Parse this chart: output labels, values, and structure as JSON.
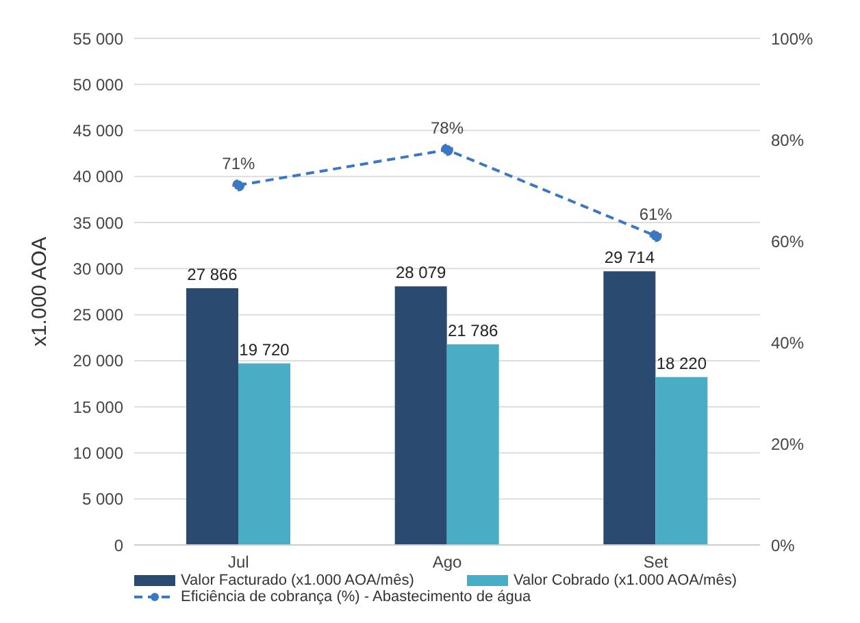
{
  "chart_data": {
    "type": "bar",
    "ylabel": "x1.000 AOA",
    "categories": [
      "Jul",
      "Ago",
      "Set"
    ],
    "series": [
      {
        "name": "Valor Facturado (x1.000 AOA/mês)",
        "color": "#2b4a6f",
        "values": [
          27866,
          28079,
          29714
        ],
        "value_labels": [
          "27 866",
          "28 079",
          "29 714"
        ]
      },
      {
        "name": "Valor Cobrado (x1.000 AOA/mês)",
        "color": "#4bacc6",
        "values": [
          19720,
          21786,
          18220
        ],
        "value_labels": [
          "19 720",
          "21 786",
          "18 220"
        ]
      },
      {
        "name": "Eficiência de cobrança (%) - Abastecimento de água",
        "type": "line",
        "axis": "y2",
        "color": "#3a78c4",
        "values": [
          71,
          78,
          61
        ],
        "value_labels": [
          "71%",
          "78%",
          "61%"
        ],
        "line_style": "dashed",
        "marker": "circle"
      }
    ],
    "ylim": [
      0,
      55000
    ],
    "yticks": [
      0,
      {
        "value": 5000,
        "label": "5 000"
      },
      {
        "value": 10000,
        "label": "10 000"
      },
      {
        "value": 15000,
        "label": "15 000"
      },
      {
        "value": 20000,
        "label": "20 000"
      },
      {
        "value": 25000,
        "label": "25 000"
      },
      {
        "value": 30000,
        "label": "30 000"
      },
      {
        "value": 35000,
        "label": "35 000"
      },
      {
        "value": 40000,
        "label": "40 000"
      },
      {
        "value": 45000,
        "label": "45 000"
      },
      {
        "value": 50000,
        "label": "50 000"
      },
      {
        "value": 55000,
        "label": "55 000"
      }
    ],
    "y2lim": [
      0,
      100
    ],
    "y2ticks": [
      {
        "value": 0,
        "label": "0%"
      },
      {
        "value": 20,
        "label": "20%"
      },
      {
        "value": 40,
        "label": "40%"
      },
      {
        "value": 60,
        "label": "60%"
      },
      {
        "value": 80,
        "label": "80%"
      },
      {
        "value": 100,
        "label": "100%"
      }
    ],
    "grid": "y",
    "legend": "bottom"
  }
}
